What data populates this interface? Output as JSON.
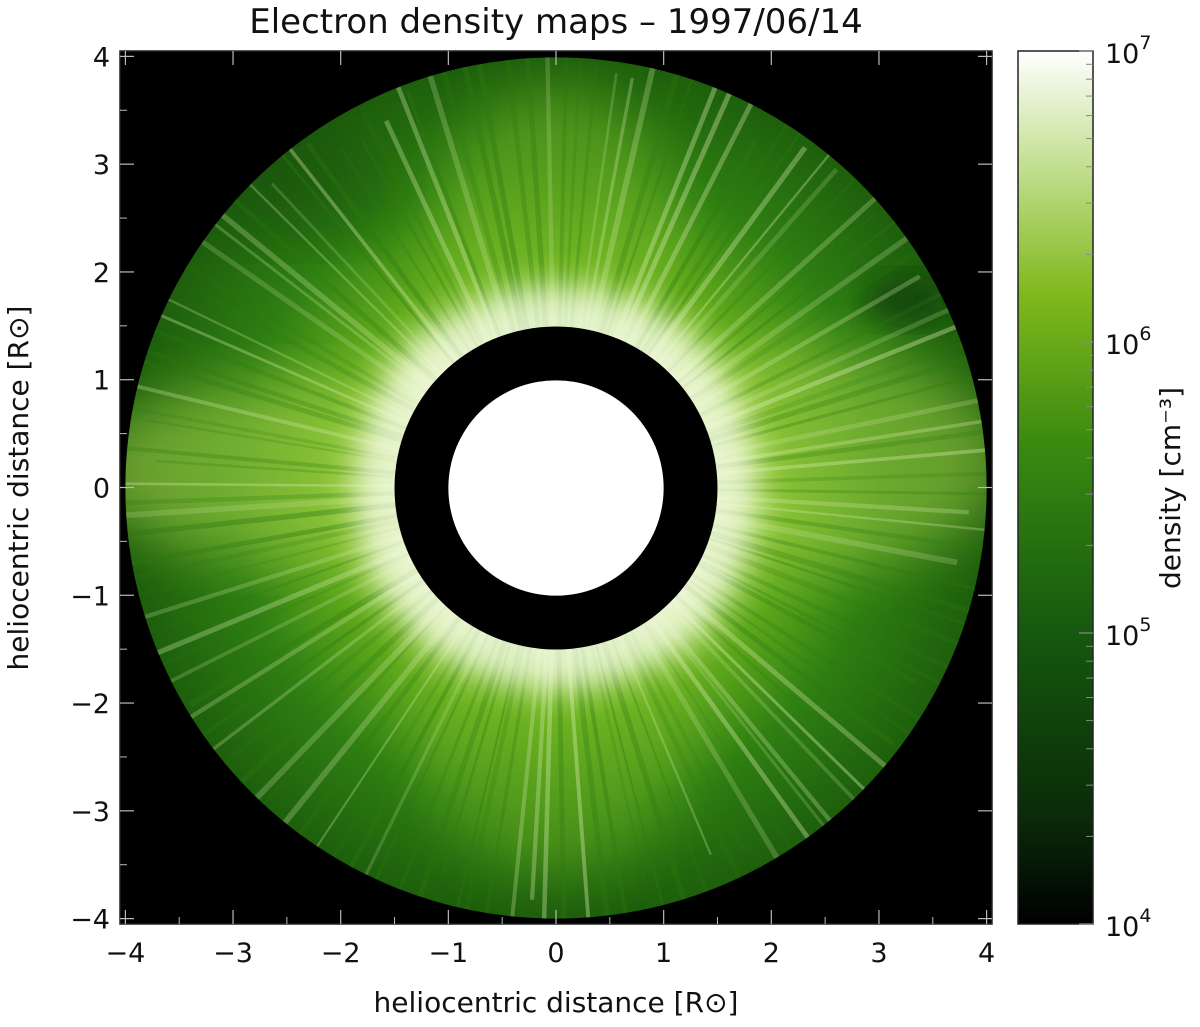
{
  "chart_data": {
    "type": "heatmap",
    "title": "Electron density maps – 1997/06/14",
    "xlabel": "heliocentric distance [R⊙]",
    "ylabel": "heliocentric distance [R⊙]",
    "x_ticks": [
      "−4",
      "−3",
      "−2",
      "−1",
      "0",
      "1",
      "2",
      "3",
      "4"
    ],
    "y_ticks": [
      "−4",
      "−3",
      "−2",
      "−1",
      "0",
      "1",
      "2",
      "3",
      "4"
    ],
    "x_tick_values": [
      -4,
      -3,
      -2,
      -1,
      0,
      1,
      2,
      3,
      4
    ],
    "y_tick_values": [
      -4,
      -3,
      -2,
      -1,
      0,
      1,
      2,
      3,
      4
    ],
    "xlim": [
      -4.05,
      4.05
    ],
    "ylim": [
      -4.05,
      4.05
    ],
    "outer_radius": 4.0,
    "occulter_radius": 1.5,
    "solar_disk_radius": 1.0,
    "colorbar": {
      "label": "density [cm⁻³]",
      "scale": "log",
      "ticks": [
        {
          "value": 10000,
          "base": "10",
          "exp": "4"
        },
        {
          "value": 100000,
          "base": "10",
          "exp": "5"
        },
        {
          "value": 1000000,
          "base": "10",
          "exp": "6"
        },
        {
          "value": 10000000,
          "base": "10",
          "exp": "7"
        }
      ],
      "range": [
        10000,
        10000000
      ],
      "colors": [
        "#000000",
        "#0a2a08",
        "#14580e",
        "#3a8a10",
        "#7fb81c",
        "#c8e29a",
        "#ffffff"
      ]
    },
    "background_color": "#000000",
    "disk_color": "#ffffff"
  }
}
